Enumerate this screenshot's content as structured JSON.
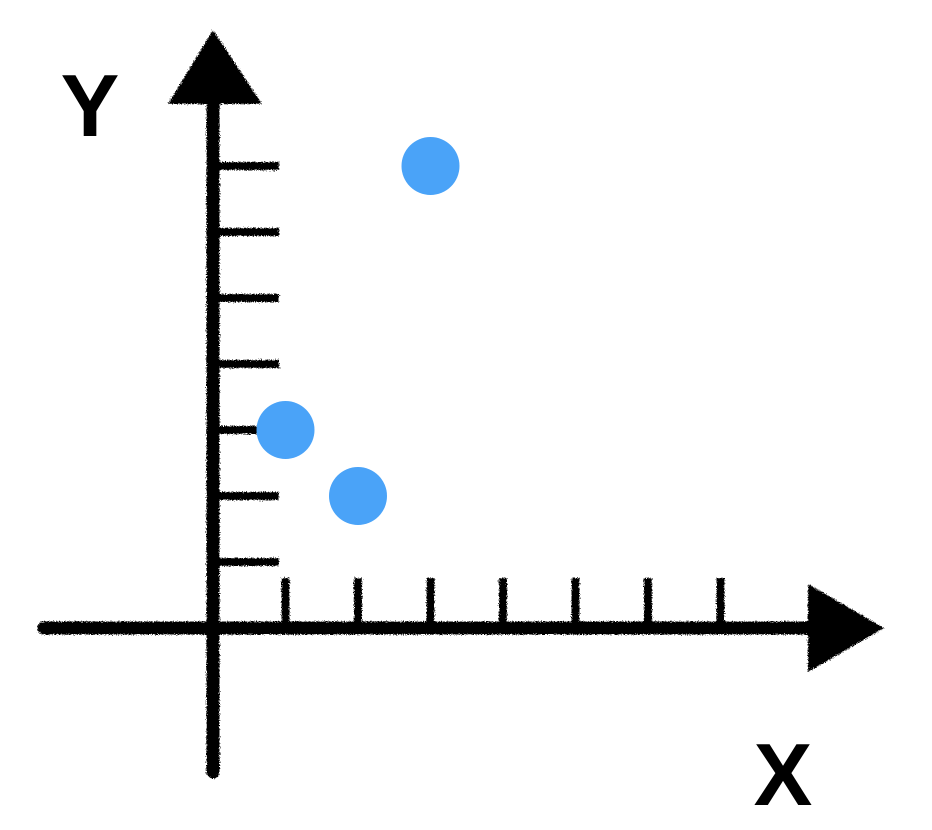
{
  "chart_data": {
    "type": "scatter",
    "xlabel": "X",
    "ylabel": "Y",
    "x_ticks": [
      1,
      2,
      3,
      4,
      5,
      6,
      7
    ],
    "y_ticks": [
      1,
      2,
      3,
      4,
      5,
      6,
      7
    ],
    "points": [
      {
        "x": 1,
        "y": 3
      },
      {
        "x": 2,
        "y": 2
      },
      {
        "x": 3,
        "y": 7
      }
    ],
    "grid": false,
    "point_color": "#4aa3f8",
    "axis_color": "#000000"
  }
}
